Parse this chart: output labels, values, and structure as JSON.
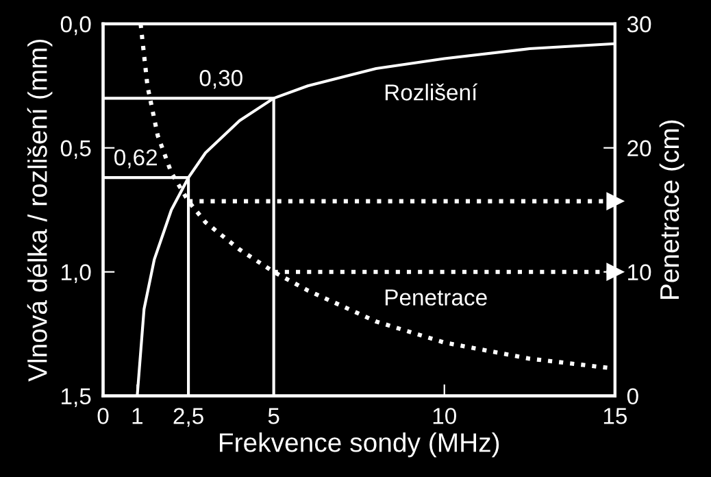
{
  "chart_data": {
    "type": "line",
    "xlabel": "Frekvence sondy (MHz)",
    "ylabel": "Vlnová délka / rozlišení (mm)",
    "y2label": "Penetrace (cm)",
    "xlim": [
      0,
      15
    ],
    "xticks": [
      0,
      1,
      {
        "value": 2.5,
        "label": "2,5"
      },
      5,
      10,
      15
    ],
    "ylim": [
      1.5,
      0
    ],
    "yticks": [
      {
        "value": 0,
        "label": "0,0"
      },
      {
        "value": 0.5,
        "label": "0,5"
      },
      {
        "value": 1.0,
        "label": "1,0"
      },
      {
        "value": 1.5,
        "label": "1,5"
      }
    ],
    "y2lim": [
      0,
      30
    ],
    "y2ticks": [
      0,
      10,
      20,
      30
    ],
    "annotations": [
      {
        "text": "0,30",
        "x": 5,
        "y": 0.3
      },
      {
        "text": "0,62",
        "x": 2.5,
        "y": 0.62
      }
    ],
    "grid": false,
    "legend": false,
    "series": [
      {
        "name": "Rozlišení",
        "color": "#ffffff",
        "line_style": "solid",
        "x": [
          1,
          1.2,
          1.5,
          2,
          2.5,
          3,
          4,
          5,
          6,
          8,
          10,
          12.5,
          15
        ],
        "values": [
          1.5,
          1.15,
          0.95,
          0.75,
          0.62,
          0.52,
          0.39,
          0.3,
          0.25,
          0.18,
          0.14,
          0.1,
          0.08
        ]
      },
      {
        "name": "Penetrace",
        "color": "#ffffff",
        "line_style": "dotted",
        "axis": "y2",
        "x": [
          1.1,
          1.3,
          1.6,
          2,
          2.5,
          3,
          4,
          5,
          6,
          8,
          10,
          12.5,
          15
        ],
        "values": [
          30,
          25,
          21,
          18,
          15.7,
          14,
          11.8,
          10,
          8.5,
          6,
          4.3,
          3,
          2.2
        ]
      },
      {
        "color": "#ffffff",
        "line_style": "solid",
        "x": [
          0,
          5,
          5
        ],
        "values": [
          0.3,
          0.3,
          1.5
        ]
      },
      {
        "color": "#ffffff",
        "line_style": "solid",
        "x": [
          0,
          2.5,
          2.5
        ],
        "values": [
          0.62,
          0.62,
          1.5
        ]
      },
      {
        "color": "#ffffff",
        "line_style": "dotted",
        "axis": "y2",
        "x": [
          2.5,
          15
        ],
        "values": [
          15.7,
          15.7
        ]
      },
      {
        "color": "#ffffff",
        "line_style": "dotted",
        "axis": "y2",
        "x": [
          5,
          15
        ],
        "values": [
          10,
          10
        ]
      }
    ]
  }
}
